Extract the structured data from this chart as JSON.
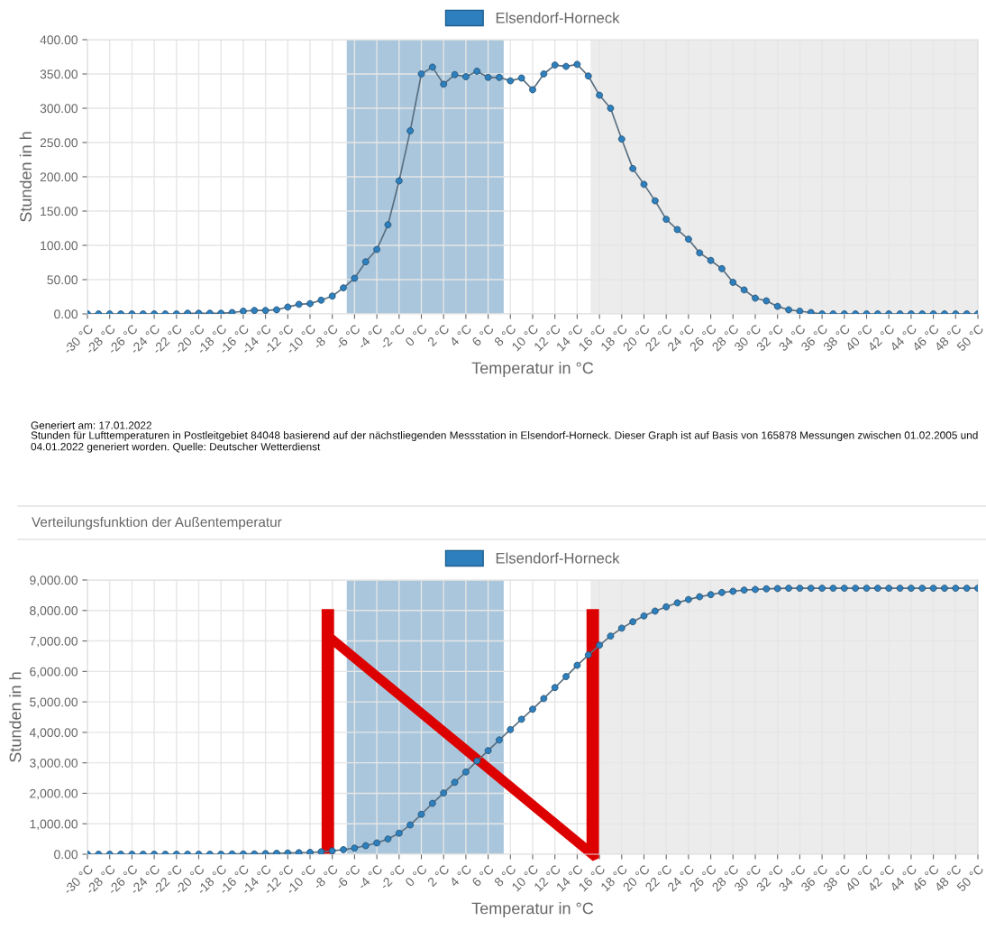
{
  "chart_data": [
    {
      "type": "line",
      "legend": "top",
      "marker": "circle",
      "line_style": "solid",
      "grid": true,
      "xlabel": "Temperatur in °C",
      "ylabel": "Stunden in h",
      "annotations": [
        "Generiert am: 17.01.2022",
        "Stunden für Lufttemperaturen in Postleitgebiet 84048 basierend auf der nächstliegenden Messstation in Elsendorf-Horneck. Dieser Graph ist auf Basis von 165878 Messungen zwischen 01.02.2005 und 04.01.2022 generiert worden. Quelle: Deutscher Wetterdienst"
      ],
      "x": [
        -30,
        -29,
        -28,
        -27,
        -26,
        -25,
        -24,
        -23,
        -22,
        -21,
        -20,
        -19,
        -18,
        -17,
        -16,
        -15,
        -14,
        -13,
        -12,
        -11,
        -10,
        -9,
        -8,
        -7,
        -6,
        -5,
        -4,
        -3,
        -2,
        -1,
        0,
        1,
        2,
        3,
        4,
        5,
        6,
        7,
        8,
        9,
        10,
        11,
        12,
        13,
        14,
        15,
        16,
        17,
        18,
        19,
        20,
        21,
        22,
        23,
        24,
        25,
        26,
        27,
        28,
        29,
        30,
        31,
        32,
        33,
        34,
        35,
        36,
        37,
        38,
        39,
        40,
        41,
        42,
        43,
        44,
        45,
        46,
        47,
        48,
        49,
        50
      ],
      "series": [
        {
          "name": "Elsendorf-Horneck",
          "color": "#2e7fbd",
          "values": [
            0,
            0,
            0,
            0,
            0,
            0,
            0,
            0,
            0,
            1,
            1,
            1,
            1,
            2,
            4,
            5,
            5,
            6,
            10,
            14,
            15,
            20,
            26,
            38,
            52,
            76,
            94,
            130,
            194,
            267,
            350,
            360,
            335,
            349,
            346,
            354,
            345,
            345,
            340,
            344,
            327,
            350,
            363,
            361,
            364,
            347,
            319,
            300,
            255,
            212,
            189,
            165,
            138,
            123,
            109,
            89,
            78,
            66,
            46,
            35,
            23,
            19,
            11,
            6,
            4,
            2,
            0,
            0,
            0,
            0,
            0,
            0,
            0,
            0,
            0,
            0,
            0,
            0,
            0,
            0,
            0
          ]
        }
      ],
      "xlim": [
        -30,
        50
      ],
      "xticks": [
        {
          "value": -30,
          "label": "-30 °C"
        },
        {
          "value": -28,
          "label": "-28 °C"
        },
        {
          "value": -26,
          "label": "-26 °C"
        },
        {
          "value": -24,
          "label": "-24 °C"
        },
        {
          "value": -22,
          "label": "-22 °C"
        },
        {
          "value": -20,
          "label": "-20 °C"
        },
        {
          "value": -18,
          "label": "-18 °C"
        },
        {
          "value": -16,
          "label": "-16 °C"
        },
        {
          "value": -14,
          "label": "-14 °C"
        },
        {
          "value": -12,
          "label": "-12 °C"
        },
        {
          "value": -10,
          "label": "-10 °C"
        },
        {
          "value": -8,
          "label": "-8 °C"
        },
        {
          "value": -6,
          "label": "-6 °C"
        },
        {
          "value": -4,
          "label": "-4 °C"
        },
        {
          "value": -2,
          "label": "-2 °C"
        },
        {
          "value": 0,
          "label": "0 °C"
        },
        {
          "value": 2,
          "label": "2 °C"
        },
        {
          "value": 4,
          "label": "4 °C"
        },
        {
          "value": 6,
          "label": "6 °C"
        },
        {
          "value": 8,
          "label": "8 °C"
        },
        {
          "value": 10,
          "label": "10 °C"
        },
        {
          "value": 12,
          "label": "12 °C"
        },
        {
          "value": 14,
          "label": "14 °C"
        },
        {
          "value": 16,
          "label": "16 °C"
        },
        {
          "value": 18,
          "label": "18 °C"
        },
        {
          "value": 20,
          "label": "20 °C"
        },
        {
          "value": 22,
          "label": "22 °C"
        },
        {
          "value": 24,
          "label": "24 °C"
        },
        {
          "value": 26,
          "label": "26 °C"
        },
        {
          "value": 28,
          "label": "28 °C"
        },
        {
          "value": 30,
          "label": "30 °C"
        },
        {
          "value": 32,
          "label": "32 °C"
        },
        {
          "value": 34,
          "label": "34 °C"
        },
        {
          "value": 36,
          "label": "36 °C"
        },
        {
          "value": 38,
          "label": "38 °C"
        },
        {
          "value": 40,
          "label": "40 °C"
        },
        {
          "value": 42,
          "label": "42 °C"
        },
        {
          "value": 44,
          "label": "44 °C"
        },
        {
          "value": 46,
          "label": "46 °C"
        },
        {
          "value": 48,
          "label": "48 °C"
        },
        {
          "value": 50,
          "label": "50 °C"
        }
      ],
      "ylim": [
        0,
        400
      ],
      "yticks": [
        {
          "value": 0,
          "label": "0.00"
        },
        {
          "value": 50,
          "label": "50.00"
        },
        {
          "value": 100,
          "label": "100.00"
        },
        {
          "value": 150,
          "label": "150.00"
        },
        {
          "value": 200,
          "label": "200.00"
        },
        {
          "value": 250,
          "label": "250.00"
        },
        {
          "value": 300,
          "label": "300.00"
        },
        {
          "value": 350,
          "label": "350.00"
        },
        {
          "value": 400,
          "label": "400.00"
        }
      ],
      "bands": [
        {
          "axis": "x",
          "from": -6.7,
          "to": 7.4,
          "color": "#a9c6dc"
        },
        {
          "axis": "x",
          "from": 15.2,
          "to": 50,
          "color": "#ececec"
        }
      ]
    },
    {
      "type": "line",
      "legend": "top",
      "marker": "circle",
      "line_style": "solid",
      "grid": true,
      "title": "Verteilungsfunktion der Außentemperatur",
      "xlabel": "Temperatur in °C",
      "ylabel": "Stunden in h",
      "x": [
        -30,
        -29,
        -28,
        -27,
        -26,
        -25,
        -24,
        -23,
        -22,
        -21,
        -20,
        -19,
        -18,
        -17,
        -16,
        -15,
        -14,
        -13,
        -12,
        -11,
        -10,
        -9,
        -8,
        -7,
        -6,
        -5,
        -4,
        -3,
        -2,
        -1,
        0,
        1,
        2,
        3,
        4,
        5,
        6,
        7,
        8,
        9,
        10,
        11,
        12,
        13,
        14,
        15,
        16,
        17,
        18,
        19,
        20,
        21,
        22,
        23,
        24,
        25,
        26,
        27,
        28,
        29,
        30,
        31,
        32,
        33,
        34,
        35,
        36,
        37,
        38,
        39,
        40,
        41,
        42,
        43,
        44,
        45,
        46,
        47,
        48,
        49,
        50
      ],
      "series": [
        {
          "name": "Elsendorf-Horneck",
          "color": "#2e7fbd",
          "values": [
            0,
            0,
            0,
            0,
            0,
            0,
            0,
            0,
            0,
            0,
            0,
            0,
            0,
            10,
            10,
            10,
            20,
            30,
            40,
            50,
            60,
            80,
            110,
            150,
            200,
            280,
            370,
            500,
            690,
            960,
            1310,
            1670,
            2010,
            2360,
            2700,
            3060,
            3400,
            3750,
            4090,
            4430,
            4760,
            5110,
            5470,
            5830,
            6200,
            6540,
            6860,
            7160,
            7420,
            7630,
            7820,
            7980,
            8120,
            8250,
            8360,
            8450,
            8520,
            8590,
            8630,
            8670,
            8690,
            8710,
            8720,
            8730,
            8730,
            8730,
            8730,
            8730,
            8730,
            8730,
            8730,
            8730,
            8730,
            8730,
            8730,
            8730,
            8730,
            8730,
            8730,
            8730,
            8730
          ]
        }
      ],
      "xlim": [
        -30,
        50
      ],
      "xticks": [
        {
          "value": -30,
          "label": "-30 °C"
        },
        {
          "value": -28,
          "label": "-28 °C"
        },
        {
          "value": -26,
          "label": "-26 °C"
        },
        {
          "value": -24,
          "label": "-24 °C"
        },
        {
          "value": -22,
          "label": "-22 °C"
        },
        {
          "value": -20,
          "label": "-20 °C"
        },
        {
          "value": -18,
          "label": "-18 °C"
        },
        {
          "value": -16,
          "label": "-16 °C"
        },
        {
          "value": -14,
          "label": "-14 °C"
        },
        {
          "value": -12,
          "label": "-12 °C"
        },
        {
          "value": -10,
          "label": "-10 °C"
        },
        {
          "value": -8,
          "label": "-8 °C"
        },
        {
          "value": -6,
          "label": "-6 °C"
        },
        {
          "value": -4,
          "label": "-4 °C"
        },
        {
          "value": -2,
          "label": "-2 °C"
        },
        {
          "value": 0,
          "label": "0 °C"
        },
        {
          "value": 2,
          "label": "2 °C"
        },
        {
          "value": 4,
          "label": "4 °C"
        },
        {
          "value": 6,
          "label": "6 °C"
        },
        {
          "value": 8,
          "label": "8 °C"
        },
        {
          "value": 10,
          "label": "10 °C"
        },
        {
          "value": 12,
          "label": "12 °C"
        },
        {
          "value": 14,
          "label": "14 °C"
        },
        {
          "value": 16,
          "label": "16 °C"
        },
        {
          "value": 18,
          "label": "18 °C"
        },
        {
          "value": 20,
          "label": "20 °C"
        },
        {
          "value": 22,
          "label": "22 °C"
        },
        {
          "value": 24,
          "label": "24 °C"
        },
        {
          "value": 26,
          "label": "26 °C"
        },
        {
          "value": 28,
          "label": "28 °C"
        },
        {
          "value": 30,
          "label": "30 °C"
        },
        {
          "value": 32,
          "label": "32 °C"
        },
        {
          "value": 34,
          "label": "34 °C"
        },
        {
          "value": 36,
          "label": "36 °C"
        },
        {
          "value": 38,
          "label": "38 °C"
        },
        {
          "value": 40,
          "label": "40 °C"
        },
        {
          "value": 42,
          "label": "42 °C"
        },
        {
          "value": 44,
          "label": "44 °C"
        },
        {
          "value": 46,
          "label": "46 °C"
        },
        {
          "value": 48,
          "label": "48 °C"
        },
        {
          "value": 50,
          "label": "50 °C"
        }
      ],
      "ylim": [
        0,
        9000
      ],
      "yticks": [
        {
          "value": 0,
          "label": "0.00"
        },
        {
          "value": 1000,
          "label": "1,000.00"
        },
        {
          "value": 2000,
          "label": "2,000.00"
        },
        {
          "value": 3000,
          "label": "3,000.00"
        },
        {
          "value": 4000,
          "label": "4,000.00"
        },
        {
          "value": 5000,
          "label": "5,000.00"
        },
        {
          "value": 6000,
          "label": "6,000.00"
        },
        {
          "value": 7000,
          "label": "7,000.00"
        },
        {
          "value": 8000,
          "label": "8,000.00"
        },
        {
          "value": 9000,
          "label": "9,000.00"
        }
      ],
      "bands": [
        {
          "axis": "x",
          "from": -6.7,
          "to": 7.4,
          "color": "#a9c6dc"
        },
        {
          "axis": "x",
          "from": 15.2,
          "to": 50,
          "color": "#ececec"
        }
      ]
    }
  ]
}
